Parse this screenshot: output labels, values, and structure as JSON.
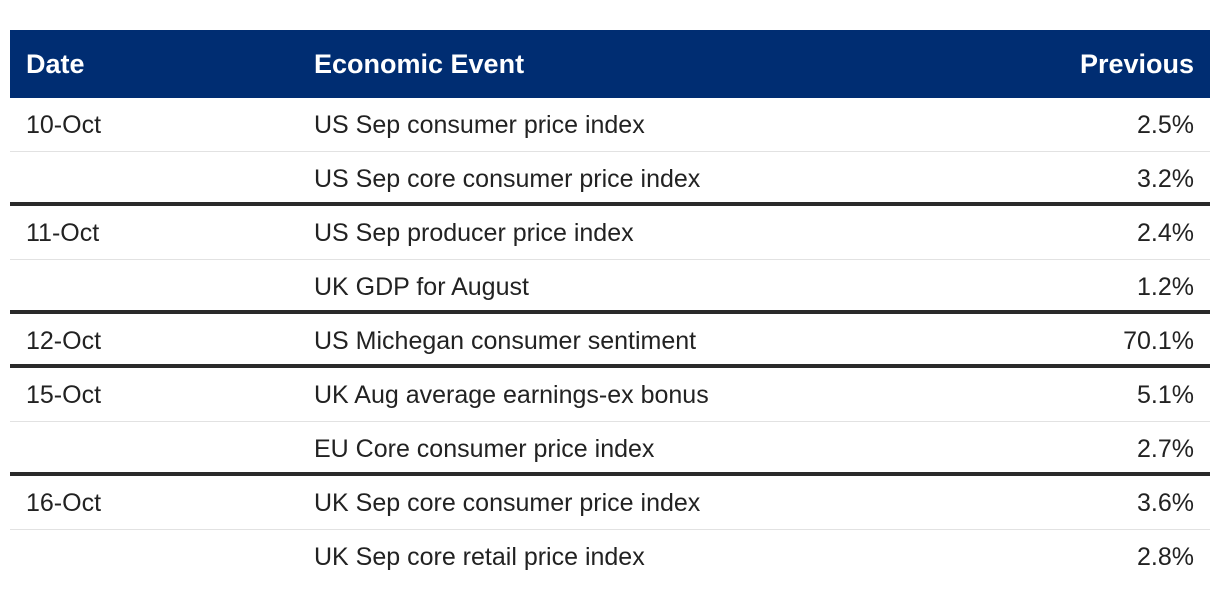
{
  "table": {
    "headers": {
      "date": "Date",
      "event": "Economic Event",
      "previous": "Previous"
    },
    "rows": [
      {
        "date": "10-Oct",
        "event": "US Sep consumer price index",
        "previous": "2.5%"
      },
      {
        "date": "",
        "event": "US Sep core consumer price index",
        "previous": "3.2%"
      },
      {
        "date": "11-Oct",
        "event": "US Sep producer price index",
        "previous": "2.4%"
      },
      {
        "date": "",
        "event": "UK GDP for August",
        "previous": "1.2%"
      },
      {
        "date": "12-Oct",
        "event": "US Michegan consumer sentiment",
        "previous": "70.1%"
      },
      {
        "date": "15-Oct",
        "event": "UK Aug average earnings-ex bonus",
        "previous": "5.1%"
      },
      {
        "date": "",
        "event": "EU Core consumer price index",
        "previous": "2.7%"
      },
      {
        "date": "16-Oct",
        "event": "UK Sep core consumer price index",
        "previous": "3.6%"
      },
      {
        "date": "",
        "event": "UK Sep core retail price index",
        "previous": "2.8%"
      }
    ]
  },
  "colors": {
    "header_bg": "#002d72",
    "header_text": "#ffffff",
    "group_separator": "#2a2a2a",
    "row_separator": "#e2e2e2"
  }
}
